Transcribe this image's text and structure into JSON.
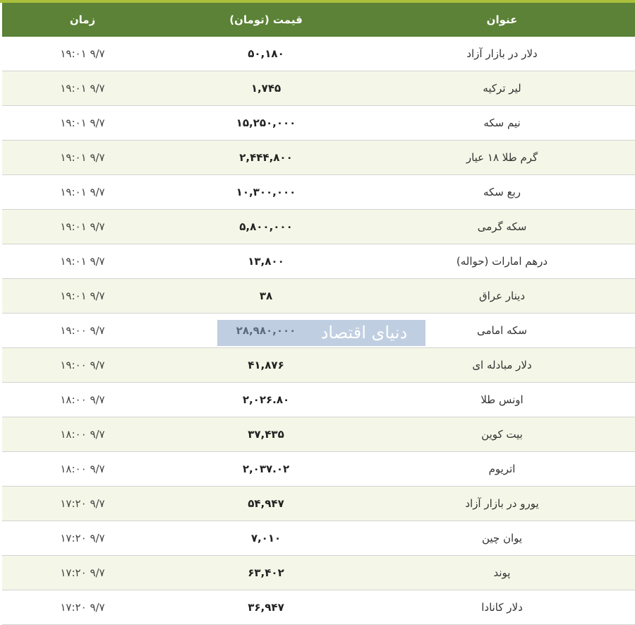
{
  "header": {
    "title": "عنوان",
    "price": "قیمت (تومان)",
    "time": "زمان"
  },
  "rows": [
    {
      "title": "دلار در بازار آزاد",
      "price": "۵۰,۱۸۰",
      "time": "۹/۷ ۱۹:۰۱"
    },
    {
      "title": "لیر ترکیه",
      "price": "۱,۷۴۵",
      "time": "۹/۷ ۱۹:۰۱"
    },
    {
      "title": "نیم سکه",
      "price": "۱۵,۲۵۰,۰۰۰",
      "time": "۹/۷ ۱۹:۰۱"
    },
    {
      "title": "گرم طلا ۱۸ عیار",
      "price": "۲,۴۴۴,۸۰۰",
      "time": "۹/۷ ۱۹:۰۱"
    },
    {
      "title": "ربع سکه",
      "price": "۱۰,۳۰۰,۰۰۰",
      "time": "۹/۷ ۱۹:۰۱"
    },
    {
      "title": "سکه گرمی",
      "price": "۵,۸۰۰,۰۰۰",
      "time": "۹/۷ ۱۹:۰۱"
    },
    {
      "title": "درهم امارات (حواله)",
      "price": "۱۳,۸۰۰",
      "time": "۹/۷ ۱۹:۰۱"
    },
    {
      "title": "دینار عراق",
      "price": "۳۸",
      "time": "۹/۷ ۱۹:۰۱"
    },
    {
      "title": "سکه امامی",
      "price": "۲۸,۹۸۰,۰۰۰",
      "time": "۹/۷ ۱۹:۰۰"
    },
    {
      "title": "دلار مبادله ای",
      "price": "۴۱,۸۷۶",
      "time": "۹/۷ ۱۹:۰۰"
    },
    {
      "title": "اونس طلا",
      "price": "۲,۰۲۶.۸۰",
      "time": "۹/۷ ۱۸:۰۰"
    },
    {
      "title": "بیت کوین",
      "price": "۳۷,۴۳۵",
      "time": "۹/۷ ۱۸:۰۰"
    },
    {
      "title": "اتریوم",
      "price": "۲,۰۳۷.۰۲",
      "time": "۹/۷ ۱۸:۰۰"
    },
    {
      "title": "یورو در بازار آزاد",
      "price": "۵۴,۹۴۷",
      "time": "۹/۷ ۱۷:۲۰"
    },
    {
      "title": "یوان چین",
      "price": "۷,۰۱۰",
      "time": "۹/۷ ۱۷:۲۰"
    },
    {
      "title": "پوند",
      "price": "۶۳,۴۰۲",
      "time": "۹/۷ ۱۷:۲۰"
    },
    {
      "title": "دلار کانادا",
      "price": "۳۶,۹۴۷",
      "time": "۹/۷ ۱۷:۲۰"
    }
  ],
  "watermark": "دنیای اقتصاد",
  "colors": {
    "header": "#5b8236",
    "topbar": "#a9bf3c",
    "alt_row": "#f4f7e7"
  }
}
